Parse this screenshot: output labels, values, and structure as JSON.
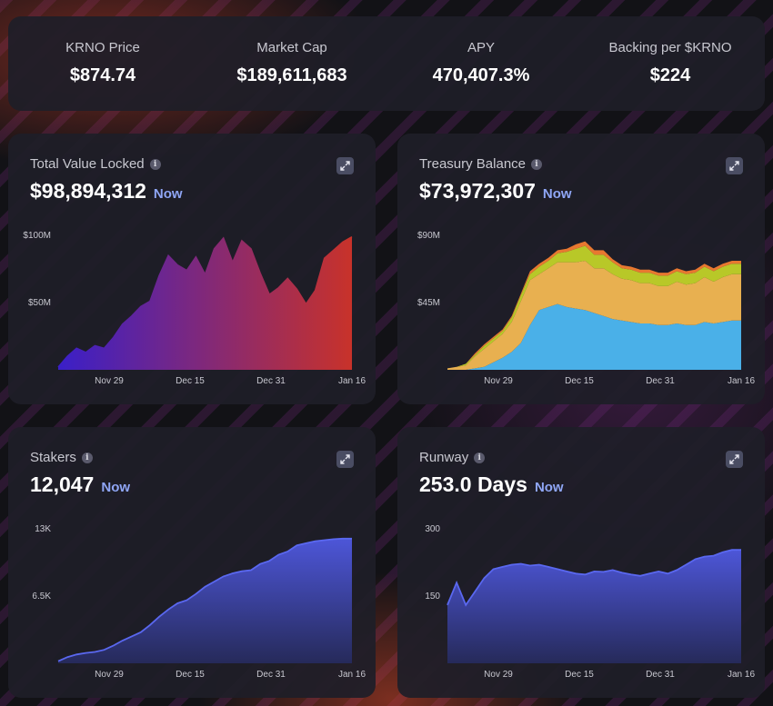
{
  "stats": [
    {
      "label": "KRNO Price",
      "value": "$874.74"
    },
    {
      "label": "Market Cap",
      "value": "$189,611,683"
    },
    {
      "label": "APY",
      "value": "470,407.3%"
    },
    {
      "label": "Backing per $KRNO",
      "value": "$224"
    }
  ],
  "cards": {
    "tvl": {
      "title": "Total Value Locked",
      "value": "$98,894,312",
      "now": "Now"
    },
    "treasury": {
      "title": "Treasury Balance",
      "value": "$73,972,307",
      "now": "Now"
    },
    "stakers": {
      "title": "Stakers",
      "value": "12,047",
      "now": "Now"
    },
    "runway": {
      "title": "Runway",
      "value": "253.0 Days",
      "now": "Now"
    }
  },
  "colors": {
    "accent_now": "#8fa6f5",
    "panel": "#1e1e28",
    "tvl_start": "#3a1fc8",
    "tvl_end": "#c8322a",
    "stakers_line": "#5a68f0",
    "treasury_blue": "#4ab0e8",
    "treasury_gold": "#e8b050",
    "treasury_green": "#b8c828",
    "treasury_orange": "#e87830"
  },
  "icons": {
    "info": "info-icon",
    "expand": "expand-icon"
  },
  "chart_data": [
    {
      "type": "area",
      "name": "tvl",
      "x": [
        "Nov 14",
        "Nov 16",
        "Nov 18",
        "Nov 20",
        "Nov 22",
        "Nov 24",
        "Nov 26",
        "Nov 28",
        "Nov 30",
        "Dec 2",
        "Dec 4",
        "Dec 6",
        "Dec 8",
        "Dec 10",
        "Dec 12",
        "Dec 14",
        "Dec 16",
        "Dec 18",
        "Dec 20",
        "Dec 22",
        "Dec 24",
        "Dec 26",
        "Dec 28",
        "Dec 30",
        "Jan 1",
        "Jan 3",
        "Jan 5",
        "Jan 7",
        "Jan 9",
        "Jan 11",
        "Jan 13",
        "Jan 15",
        "Jan 16"
      ],
      "values": [
        2,
        10,
        16,
        13,
        18,
        16,
        24,
        34,
        40,
        47,
        51,
        70,
        85,
        78,
        74,
        84,
        71,
        90,
        98,
        80,
        96,
        90,
        72,
        56,
        61,
        68,
        60,
        49,
        59,
        83,
        89,
        95,
        98.9
      ],
      "xticks": [
        "Nov 29",
        "Dec 15",
        "Dec 31",
        "Jan 16"
      ],
      "yticks": [
        {
          "v": 50,
          "label": "$50M"
        },
        {
          "v": 100,
          "label": "$100M"
        }
      ],
      "ylim": [
        0,
        100
      ]
    },
    {
      "type": "area",
      "name": "treasury",
      "x": [
        "Nov 14",
        "Nov 16",
        "Nov 18",
        "Nov 20",
        "Nov 22",
        "Nov 24",
        "Nov 26",
        "Nov 28",
        "Nov 30",
        "Dec 2",
        "Dec 4",
        "Dec 6",
        "Dec 8",
        "Dec 10",
        "Dec 12",
        "Dec 14",
        "Dec 16",
        "Dec 18",
        "Dec 20",
        "Dec 22",
        "Dec 24",
        "Dec 26",
        "Dec 28",
        "Dec 30",
        "Jan 1",
        "Jan 3",
        "Jan 5",
        "Jan 7",
        "Jan 9",
        "Jan 11",
        "Jan 13",
        "Jan 15",
        "Jan 16"
      ],
      "series": [
        {
          "name": "blue",
          "values": [
            0,
            0,
            0,
            1,
            2,
            5,
            8,
            12,
            18,
            30,
            40,
            42,
            44,
            42,
            41,
            40,
            38,
            36,
            34,
            33,
            32,
            31,
            31,
            30,
            30,
            31,
            30,
            30,
            32,
            31,
            32,
            33,
            33
          ]
        },
        {
          "name": "gold",
          "values": [
            1,
            2,
            3,
            8,
            12,
            14,
            16,
            20,
            28,
            30,
            24,
            26,
            28,
            30,
            31,
            33,
            30,
            32,
            30,
            28,
            28,
            27,
            27,
            26,
            26,
            28,
            27,
            28,
            30,
            28,
            30,
            31,
            31
          ]
        },
        {
          "name": "green",
          "values": [
            0,
            0,
            1,
            1,
            2,
            2,
            2,
            3,
            4,
            4,
            5,
            5,
            6,
            7,
            9,
            10,
            9,
            9,
            8,
            7,
            7,
            7,
            7,
            7,
            7,
            7,
            7,
            7,
            7,
            7,
            7,
            7,
            7
          ]
        },
        {
          "name": "orange",
          "values": [
            0,
            0,
            0,
            1,
            1,
            1,
            1,
            1,
            1,
            2,
            2,
            2,
            2,
            2,
            3,
            3,
            3,
            3,
            2,
            2,
            2,
            2,
            2,
            2,
            2,
            2,
            2,
            2,
            2,
            2,
            2,
            2,
            2
          ]
        }
      ],
      "xticks": [
        "Nov 29",
        "Dec 15",
        "Dec 31",
        "Jan 16"
      ],
      "yticks": [
        {
          "v": 45,
          "label": "$45M"
        },
        {
          "v": 90,
          "label": "$90M"
        }
      ],
      "ylim": [
        0,
        90
      ]
    },
    {
      "type": "area",
      "name": "stakers",
      "x": [
        "Nov 14",
        "Nov 16",
        "Nov 18",
        "Nov 20",
        "Nov 22",
        "Nov 24",
        "Nov 26",
        "Nov 28",
        "Nov 30",
        "Dec 2",
        "Dec 4",
        "Dec 6",
        "Dec 8",
        "Dec 10",
        "Dec 12",
        "Dec 14",
        "Dec 16",
        "Dec 18",
        "Dec 20",
        "Dec 22",
        "Dec 24",
        "Dec 26",
        "Dec 28",
        "Dec 30",
        "Jan 1",
        "Jan 3",
        "Jan 5",
        "Jan 7",
        "Jan 9",
        "Jan 11",
        "Jan 13",
        "Jan 15",
        "Jan 16"
      ],
      "values": [
        200,
        600,
        850,
        1000,
        1100,
        1300,
        1700,
        2200,
        2600,
        3000,
        3700,
        4500,
        5200,
        5800,
        6100,
        6700,
        7400,
        7900,
        8400,
        8700,
        8900,
        9000,
        9600,
        9900,
        10500,
        10800,
        11400,
        11600,
        11800,
        11900,
        12000,
        12047,
        12047
      ],
      "xticks": [
        "Nov 29",
        "Dec 15",
        "Dec 31",
        "Jan 16"
      ],
      "yticks": [
        {
          "v": 6500,
          "label": "6.5K"
        },
        {
          "v": 13000,
          "label": "13K"
        }
      ],
      "ylim": [
        0,
        13000
      ]
    },
    {
      "type": "area",
      "name": "runway",
      "x": [
        "Nov 14",
        "Nov 16",
        "Nov 18",
        "Nov 20",
        "Nov 22",
        "Nov 24",
        "Nov 26",
        "Nov 28",
        "Nov 30",
        "Dec 2",
        "Dec 4",
        "Dec 6",
        "Dec 8",
        "Dec 10",
        "Dec 12",
        "Dec 14",
        "Dec 16",
        "Dec 18",
        "Dec 20",
        "Dec 22",
        "Dec 24",
        "Dec 26",
        "Dec 28",
        "Dec 30",
        "Jan 1",
        "Jan 3",
        "Jan 5",
        "Jan 7",
        "Jan 9",
        "Jan 11",
        "Jan 13",
        "Jan 15",
        "Jan 16"
      ],
      "values": [
        130,
        180,
        130,
        160,
        190,
        210,
        215,
        220,
        222,
        218,
        220,
        215,
        210,
        205,
        200,
        198,
        205,
        204,
        208,
        202,
        198,
        195,
        200,
        205,
        200,
        208,
        220,
        232,
        238,
        240,
        248,
        253,
        253
      ],
      "xticks": [
        "Nov 29",
        "Dec 15",
        "Dec 31",
        "Jan 16"
      ],
      "yticks": [
        {
          "v": 150,
          "label": "150"
        },
        {
          "v": 300,
          "label": "300"
        }
      ],
      "ylim": [
        0,
        300
      ]
    }
  ]
}
